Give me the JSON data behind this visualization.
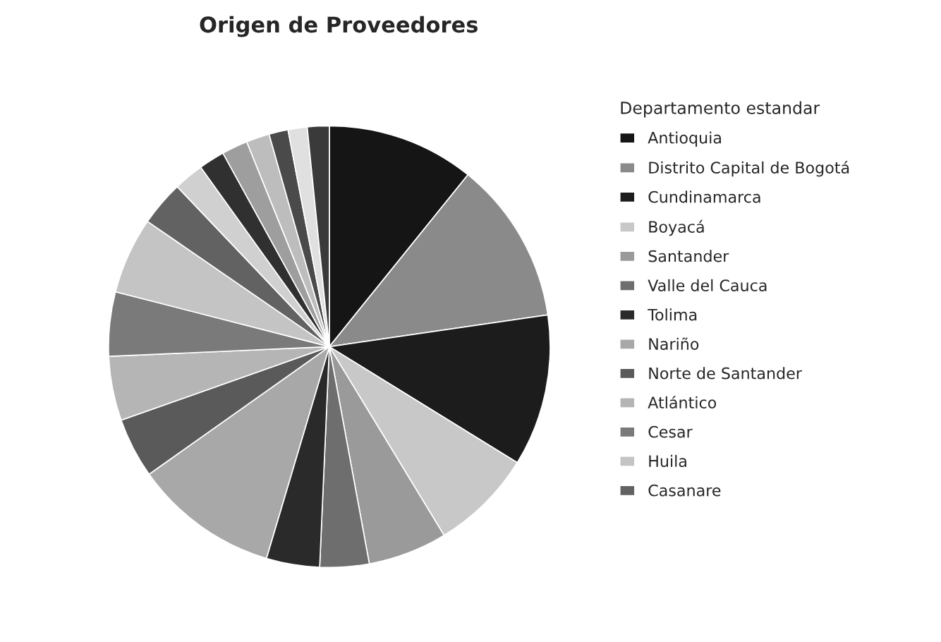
{
  "chart_data": {
    "type": "pie",
    "title": "Origen de Proveedores",
    "legend_title": "Departamento estandar",
    "legend": "right",
    "categories": [
      "Antioquia",
      "Distrito Capital de Bogotá",
      "Cundinamarca",
      "Boyacá",
      "Santander",
      "Valle del Cauca",
      "Tolima",
      "Nariño",
      "Norte de Santander",
      "Atlántico",
      "Cesar",
      "Huila",
      "Casanare",
      null,
      null,
      null,
      null,
      null,
      null,
      null
    ],
    "values": [
      10.8,
      11.9,
      11.1,
      7.5,
      5.8,
      3.6,
      3.9,
      10.6,
      4.4,
      4.7,
      4.7,
      5.6,
      3.3,
      2.2,
      1.9,
      1.9,
      1.7,
      1.4,
      1.4,
      1.6
    ],
    "colors": [
      "#151515",
      "#8a8a8a",
      "#1c1c1c",
      "#c8c8c8",
      "#9a9a9a",
      "#6e6e6e",
      "#2a2a2a",
      "#a8a8a8",
      "#5a5a5a",
      "#b5b5b5",
      "#7a7a7a",
      "#c4c4c4",
      "#626262",
      "#d0d0d0",
      "#303030",
      "#9e9e9e",
      "#bdbdbd",
      "#4a4a4a",
      "#e0e0e0",
      "#3a3a3a"
    ]
  }
}
